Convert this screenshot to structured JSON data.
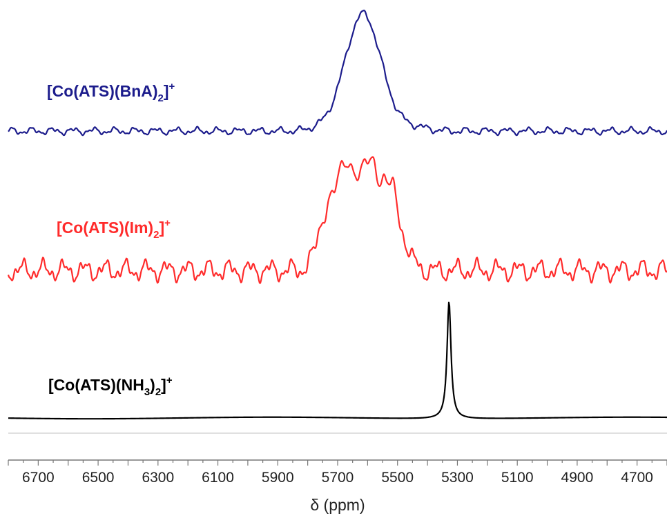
{
  "chart_data": {
    "type": "line",
    "xlabel": "δ (ppm)",
    "xlim": [
      6800,
      4600
    ],
    "x_reversed": true,
    "xticks": [
      6700,
      6500,
      6300,
      6100,
      5900,
      5700,
      5500,
      5300,
      5100,
      4900,
      4700
    ],
    "xtick_labels": [
      "6700",
      "6500",
      "6300",
      "6100",
      "5900",
      "5700",
      "5500",
      "5300",
      "5100",
      "4900",
      "4700"
    ],
    "yaxis_visible": false,
    "grid": false,
    "colors": {
      "bna": "#1c1c8c",
      "im": "#ff2b2b",
      "nh3": "#000000",
      "axis": "#777777",
      "text": "#222222"
    },
    "series": [
      {
        "key": "bna",
        "label_main": "[Co(ATS)(BnA)",
        "label_sub": "2",
        "label_end": "]",
        "label_sup": "+",
        "peak_center": 5615,
        "peak_width": 85,
        "noise_amplitude": "low"
      },
      {
        "key": "im",
        "label_main": "[Co(ATS)(Im)",
        "label_sub": "2",
        "label_end": "]",
        "label_sup": "+",
        "peak_center": 5620,
        "peak_width": 140,
        "noise_amplitude": "high"
      },
      {
        "key": "nh3",
        "label_main": "[Co(ATS)(NH",
        "label_sub3": "3",
        "label_mid": ")",
        "label_sub": "2",
        "label_end": "]",
        "label_sup": "+",
        "peak_center": 5328,
        "peak_width": 8,
        "noise_amplitude": "none"
      }
    ]
  }
}
